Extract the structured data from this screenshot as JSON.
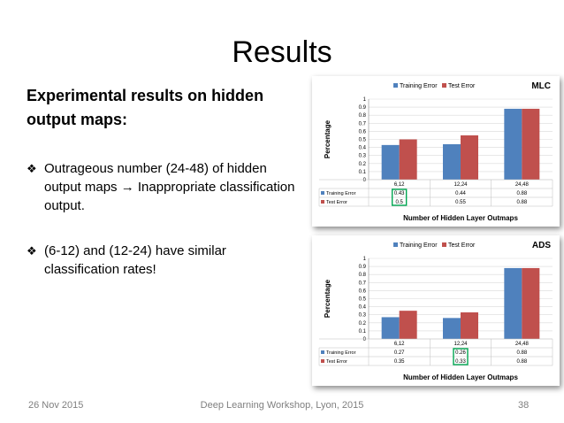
{
  "slide": {
    "title": "Results",
    "heading": "Experimental results on hidden output maps:",
    "bullet1_pre": "Outrageous number (24-48) of hidden output maps ",
    "bullet1_arrow": "→",
    "bullet1_post": " Inappropriate classification output.",
    "bullet2": "(6-12) and (12-24) have similar classification rates!",
    "bullet_icon": "diamond-bullet-icon",
    "footer_date": "26 Nov 2015",
    "footer_event": "Deep Learning Workshop, Lyon, 2015",
    "footer_page": "38"
  },
  "colors": {
    "training": "#4f81bd",
    "test": "#c0504d",
    "highlight": "#00a651"
  },
  "chart_data": [
    {
      "type": "bar",
      "tag": "MLC",
      "categories": [
        "6,12",
        "12,24",
        "24,48"
      ],
      "series": [
        {
          "name": "Training Error",
          "values": [
            0.43,
            0.44,
            0.88
          ]
        },
        {
          "name": "Test Error",
          "values": [
            0.5,
            0.55,
            0.88
          ]
        }
      ],
      "ylim": [
        0,
        1
      ],
      "yticks": [
        "0",
        "0.1",
        "0.2",
        "0.3",
        "0.4",
        "0.5",
        "0.6",
        "0.7",
        "0.8",
        "0.9",
        "1"
      ],
      "ylabel": "Percentage",
      "xlabel": "Number of Hidden Layer Outmaps",
      "table": [
        [
          "0.43",
          "0.44",
          "0.88"
        ],
        [
          "0.5",
          "0.55",
          "0.88"
        ]
      ],
      "highlight_col": 0,
      "legend": "top",
      "grid": true
    },
    {
      "type": "bar",
      "tag": "ADS",
      "categories": [
        "6,12",
        "12,24",
        "24,48"
      ],
      "series": [
        {
          "name": "Training Error",
          "values": [
            0.27,
            0.26,
            0.88
          ]
        },
        {
          "name": "Test Error",
          "values": [
            0.35,
            0.33,
            0.88
          ]
        }
      ],
      "ylim": [
        0,
        1
      ],
      "yticks": [
        "0",
        "0.1",
        "0.2",
        "0.3",
        "0.4",
        "0.5",
        "0.6",
        "0.7",
        "0.8",
        "0.9",
        "1"
      ],
      "ylabel": "Percentage",
      "xlabel": "Number of Hidden Layer Outmaps",
      "table": [
        [
          "0.27",
          "0.26",
          "0.88"
        ],
        [
          "0.35",
          "0.33",
          "0.88"
        ]
      ],
      "highlight_col": 1,
      "legend": "top",
      "grid": true
    }
  ]
}
